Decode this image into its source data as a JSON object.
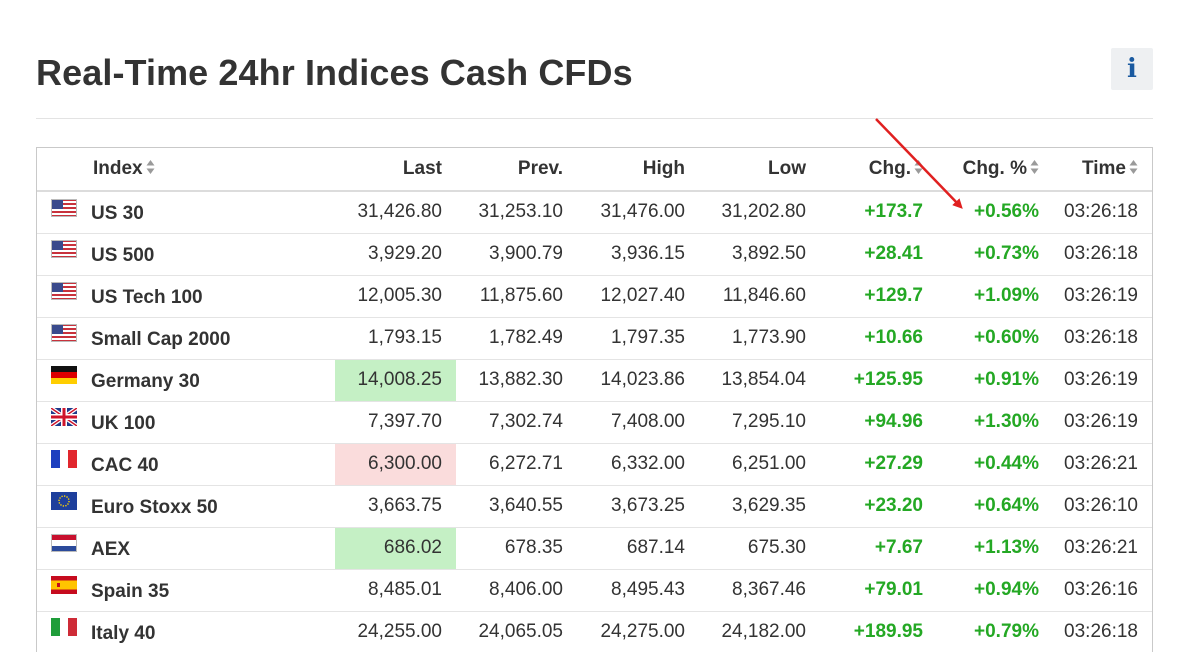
{
  "page": {
    "title": "Real-Time 24hr Indices Cash CFDs",
    "info_glyph": "i"
  },
  "table": {
    "columns": {
      "index": "Index",
      "last": "Last",
      "prev": "Prev.",
      "high": "High",
      "low": "Low",
      "chg": "Chg.",
      "chg_pct": "Chg. %",
      "time": "Time"
    },
    "sortable_columns": [
      "index",
      "chg",
      "chg_pct",
      "time"
    ],
    "rows": [
      {
        "flag": "us-flag-icon",
        "name": "US 30",
        "last": "31,426.80",
        "prev": "31,253.10",
        "high": "31,476.00",
        "low": "31,202.80",
        "chg": "+173.7",
        "chg_pct": "+0.56%",
        "time": "03:26:18",
        "highlight": ""
      },
      {
        "flag": "us-flag-icon",
        "name": "US 500",
        "last": "3,929.20",
        "prev": "3,900.79",
        "high": "3,936.15",
        "low": "3,892.50",
        "chg": "+28.41",
        "chg_pct": "+0.73%",
        "time": "03:26:18",
        "highlight": ""
      },
      {
        "flag": "us-flag-icon",
        "name": "US Tech 100",
        "last": "12,005.30",
        "prev": "11,875.60",
        "high": "12,027.40",
        "low": "11,846.60",
        "chg": "+129.7",
        "chg_pct": "+1.09%",
        "time": "03:26:19",
        "highlight": ""
      },
      {
        "flag": "us-flag-icon",
        "name": "Small Cap 2000",
        "last": "1,793.15",
        "prev": "1,782.49",
        "high": "1,797.35",
        "low": "1,773.90",
        "chg": "+10.66",
        "chg_pct": "+0.60%",
        "time": "03:26:18",
        "highlight": ""
      },
      {
        "flag": "germany-flag-icon",
        "name": "Germany 30",
        "last": "14,008.25",
        "prev": "13,882.30",
        "high": "14,023.86",
        "low": "13,854.04",
        "chg": "+125.95",
        "chg_pct": "+0.91%",
        "time": "03:26:19",
        "highlight": "green"
      },
      {
        "flag": "uk-flag-icon",
        "name": "UK 100",
        "last": "7,397.70",
        "prev": "7,302.74",
        "high": "7,408.00",
        "low": "7,295.10",
        "chg": "+94.96",
        "chg_pct": "+1.30%",
        "time": "03:26:19",
        "highlight": ""
      },
      {
        "flag": "france-flag-icon",
        "name": "CAC 40",
        "last": "6,300.00",
        "prev": "6,272.71",
        "high": "6,332.00",
        "low": "6,251.00",
        "chg": "+27.29",
        "chg_pct": "+0.44%",
        "time": "03:26:21",
        "highlight": "red"
      },
      {
        "flag": "eu-flag-icon",
        "name": "Euro Stoxx 50",
        "last": "3,663.75",
        "prev": "3,640.55",
        "high": "3,673.25",
        "low": "3,629.35",
        "chg": "+23.20",
        "chg_pct": "+0.64%",
        "time": "03:26:10",
        "highlight": ""
      },
      {
        "flag": "netherlands-flag-icon",
        "name": "AEX",
        "last": "686.02",
        "prev": "678.35",
        "high": "687.14",
        "low": "675.30",
        "chg": "+7.67",
        "chg_pct": "+1.13%",
        "time": "03:26:21",
        "highlight": "green"
      },
      {
        "flag": "spain-flag-icon",
        "name": "Spain 35",
        "last": "8,485.01",
        "prev": "8,406.00",
        "high": "8,495.43",
        "low": "8,367.46",
        "chg": "+79.01",
        "chg_pct": "+0.94%",
        "time": "03:26:16",
        "highlight": ""
      },
      {
        "flag": "italy-flag-icon",
        "name": "Italy 40",
        "last": "24,255.00",
        "prev": "24,065.05",
        "high": "24,275.00",
        "low": "24,182.00",
        "chg": "+189.95",
        "chg_pct": "+0.79%",
        "time": "03:26:18",
        "highlight": ""
      }
    ]
  },
  "colors": {
    "positive": "#24a824",
    "highlight_up": "#c5f0c5",
    "highlight_down": "#fadcdc",
    "annotation_arrow": "#e02020",
    "info_icon": "#1a5aa0"
  },
  "annotation": {
    "type": "red-arrow",
    "points_to": "chg_pct of first row"
  }
}
